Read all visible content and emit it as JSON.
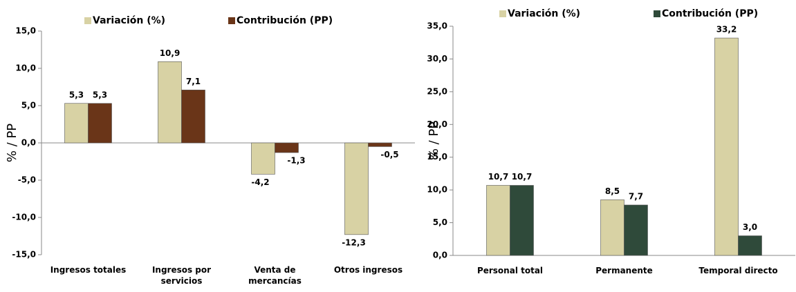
{
  "chart_data": [
    {
      "type": "bar",
      "y_label": "% / PP",
      "categories": [
        "Ingresos totales",
        "Ingresos por servicios",
        "Venta de mercancías",
        "Otros ingresos"
      ],
      "series": [
        {
          "name": "Variación (%)",
          "color": "#d8d2a4",
          "values": [
            5.3,
            10.9,
            -4.2,
            -12.3
          ],
          "value_labels": [
            "5,3",
            "10,9",
            "-4,2",
            "-12,3"
          ]
        },
        {
          "name": "Contribución (PP)",
          "color": "#6a3518",
          "values": [
            5.3,
            7.1,
            -1.3,
            -0.5
          ],
          "value_labels": [
            "5,3",
            "7,1",
            "-1,3",
            "-0,5"
          ]
        }
      ],
      "ylim": [
        -15,
        15
      ],
      "yticks": [
        {
          "value": -15,
          "label": "-15,0"
        },
        {
          "value": -10,
          "label": "-10,0"
        },
        {
          "value": -5,
          "label": "-5,0"
        },
        {
          "value": 0,
          "label": "0,0"
        },
        {
          "value": 5,
          "label": "5,0"
        },
        {
          "value": 10,
          "label": "10,0"
        },
        {
          "value": 15,
          "label": "15,0"
        }
      ]
    },
    {
      "type": "bar",
      "y_label": "% / PP",
      "categories": [
        "Personal total",
        "Permanente",
        "Temporal directo"
      ],
      "series": [
        {
          "name": "Variación (%)",
          "color": "#d8d2a4",
          "values": [
            10.7,
            8.5,
            33.2
          ],
          "value_labels": [
            "10,7",
            "8,5",
            "33,2"
          ]
        },
        {
          "name": "Contribución (PP)",
          "color": "#2f4a3a",
          "values": [
            10.7,
            7.7,
            3.0
          ],
          "value_labels": [
            "10,7",
            "7,7",
            "3,0"
          ]
        }
      ],
      "ylim": [
        0,
        35
      ],
      "yticks": [
        {
          "value": 0,
          "label": "0,0"
        },
        {
          "value": 5,
          "label": "5,0"
        },
        {
          "value": 10,
          "label": "10,0"
        },
        {
          "value": 15,
          "label": "15,0"
        },
        {
          "value": 20,
          "label": "20,0"
        },
        {
          "value": 25,
          "label": "25,0"
        },
        {
          "value": 30,
          "label": "30,0"
        },
        {
          "value": 35,
          "label": "35,0"
        }
      ]
    }
  ]
}
